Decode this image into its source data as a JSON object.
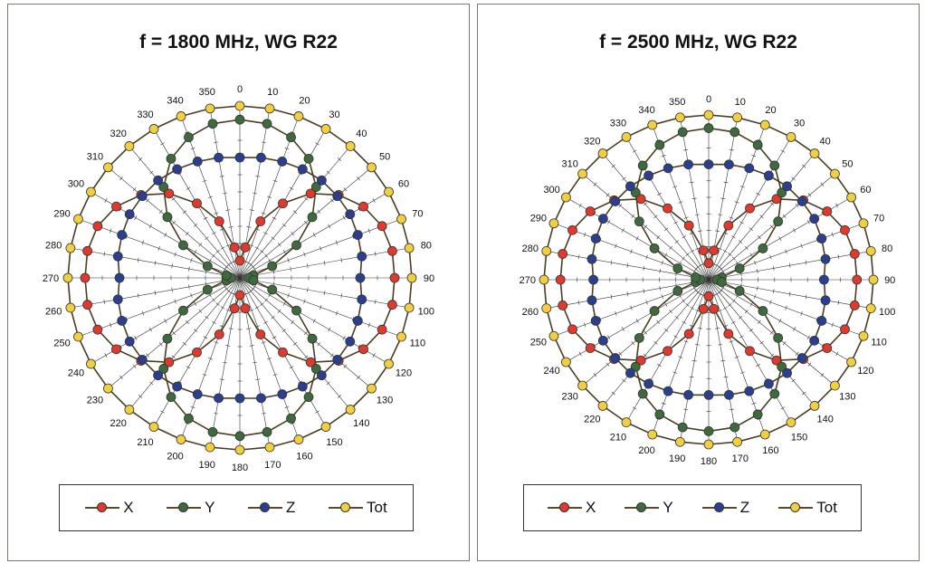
{
  "colors": {
    "X": "#e03a2e",
    "Y": "#3e6a3e",
    "Z": "#2a3f8f",
    "Tot": "#f0d040",
    "curve": "#4a3e22",
    "grid": "#333333"
  },
  "chart_data": [
    {
      "type": "polar-line",
      "title": "f = 1800 MHz, WG R22",
      "angle_ticks": [
        "0",
        "10",
        "20",
        "30",
        "40",
        "50",
        "60",
        "70",
        "80",
        "90",
        "100",
        "110",
        "120",
        "130",
        "140",
        "150",
        "160",
        "170",
        "180",
        "190",
        "200",
        "210",
        "220",
        "230",
        "240",
        "250",
        "260",
        "270",
        "280",
        "290",
        "300",
        "310",
        "320",
        "330",
        "340",
        "350"
      ],
      "angles_deg": [
        0,
        10,
        20,
        30,
        40,
        50,
        60,
        70,
        80,
        90,
        100,
        110,
        120,
        130,
        140,
        150,
        160,
        170,
        180,
        190,
        200,
        210,
        220,
        230,
        240,
        250,
        260,
        270,
        280,
        290,
        300,
        310,
        320,
        330,
        340,
        350
      ],
      "r_range": [
        0,
        1
      ],
      "series": [
        {
          "name": "X",
          "values": [
            0.1,
            0.18,
            0.35,
            0.5,
            0.64,
            0.75,
            0.83,
            0.88,
            0.9,
            0.9,
            0.9,
            0.88,
            0.83,
            0.75,
            0.64,
            0.5,
            0.35,
            0.18,
            0.1,
            0.18,
            0.35,
            0.5,
            0.64,
            0.75,
            0.83,
            0.88,
            0.9,
            0.9,
            0.9,
            0.88,
            0.83,
            0.75,
            0.64,
            0.5,
            0.35,
            0.18
          ]
        },
        {
          "name": "Y",
          "values": [
            0.92,
            0.91,
            0.87,
            0.8,
            0.69,
            0.55,
            0.38,
            0.2,
            0.08,
            0.05,
            0.08,
            0.2,
            0.38,
            0.55,
            0.69,
            0.8,
            0.87,
            0.91,
            0.92,
            0.91,
            0.87,
            0.8,
            0.69,
            0.55,
            0.38,
            0.2,
            0.08,
            0.05,
            0.08,
            0.2,
            0.38,
            0.55,
            0.69,
            0.8,
            0.87,
            0.91
          ]
        },
        {
          "name": "Z",
          "values": [
            0.7,
            0.71,
            0.72,
            0.73,
            0.74,
            0.74,
            0.74,
            0.73,
            0.72,
            0.7,
            0.72,
            0.73,
            0.74,
            0.74,
            0.74,
            0.73,
            0.72,
            0.71,
            0.7,
            0.71,
            0.72,
            0.73,
            0.74,
            0.74,
            0.74,
            0.73,
            0.72,
            0.7,
            0.72,
            0.73,
            0.74,
            0.74,
            0.74,
            0.73,
            0.72,
            0.71
          ]
        },
        {
          "name": "Tot",
          "values": [
            1.0,
            1.0,
            1.0,
            1.0,
            1.0,
            1.0,
            1.0,
            1.0,
            1.0,
            1.0,
            1.0,
            1.0,
            1.0,
            1.0,
            1.0,
            1.0,
            1.0,
            1.0,
            1.0,
            1.0,
            1.0,
            1.0,
            1.0,
            1.0,
            1.0,
            1.0,
            1.0,
            1.0,
            1.0,
            1.0,
            1.0,
            1.0,
            1.0,
            1.0,
            1.0,
            1.0
          ]
        }
      ],
      "legend_position": "bottom"
    },
    {
      "type": "polar-line",
      "title": "f = 2500 MHz, WG R22",
      "angle_ticks": [
        "0",
        "10",
        "20",
        "30",
        "40",
        "50",
        "60",
        "70",
        "80",
        "90",
        "100",
        "110",
        "120",
        "130",
        "140",
        "150",
        "160",
        "170",
        "180",
        "190",
        "200",
        "210",
        "220",
        "230",
        "240",
        "250",
        "260",
        "270",
        "280",
        "290",
        "300",
        "310",
        "320",
        "330",
        "340",
        "350"
      ],
      "angles_deg": [
        0,
        10,
        20,
        30,
        40,
        50,
        60,
        70,
        80,
        90,
        100,
        110,
        120,
        130,
        140,
        150,
        160,
        170,
        180,
        190,
        200,
        210,
        220,
        230,
        240,
        250,
        260,
        270,
        280,
        290,
        300,
        310,
        320,
        330,
        340,
        350
      ],
      "r_range": [
        0,
        1
      ],
      "series": [
        {
          "name": "X",
          "values": [
            0.1,
            0.18,
            0.35,
            0.5,
            0.64,
            0.75,
            0.83,
            0.88,
            0.9,
            0.9,
            0.9,
            0.88,
            0.83,
            0.75,
            0.64,
            0.5,
            0.35,
            0.18,
            0.1,
            0.18,
            0.35,
            0.5,
            0.64,
            0.75,
            0.83,
            0.88,
            0.9,
            0.9,
            0.9,
            0.88,
            0.83,
            0.75,
            0.64,
            0.5,
            0.35,
            0.18
          ]
        },
        {
          "name": "Y",
          "values": [
            0.92,
            0.91,
            0.87,
            0.8,
            0.69,
            0.55,
            0.38,
            0.2,
            0.08,
            0.05,
            0.08,
            0.2,
            0.38,
            0.55,
            0.69,
            0.8,
            0.87,
            0.91,
            0.92,
            0.91,
            0.87,
            0.8,
            0.69,
            0.55,
            0.38,
            0.2,
            0.08,
            0.05,
            0.08,
            0.2,
            0.38,
            0.55,
            0.69,
            0.8,
            0.87,
            0.91
          ]
        },
        {
          "name": "Z",
          "values": [
            0.7,
            0.71,
            0.72,
            0.73,
            0.74,
            0.74,
            0.74,
            0.73,
            0.72,
            0.7,
            0.72,
            0.73,
            0.74,
            0.74,
            0.74,
            0.73,
            0.72,
            0.71,
            0.7,
            0.71,
            0.72,
            0.73,
            0.74,
            0.74,
            0.74,
            0.73,
            0.72,
            0.7,
            0.72,
            0.73,
            0.74,
            0.74,
            0.74,
            0.73,
            0.72,
            0.71
          ]
        },
        {
          "name": "Tot",
          "values": [
            1.0,
            1.0,
            1.0,
            1.0,
            1.0,
            1.0,
            1.0,
            1.0,
            1.0,
            1.0,
            1.0,
            1.0,
            1.0,
            1.0,
            1.0,
            1.0,
            1.0,
            1.0,
            1.0,
            1.0,
            1.0,
            1.0,
            1.0,
            1.0,
            1.0,
            1.0,
            1.0,
            1.0,
            1.0,
            1.0,
            1.0,
            1.0,
            1.0,
            1.0,
            1.0,
            1.0
          ]
        }
      ],
      "legend_position": "bottom"
    }
  ]
}
